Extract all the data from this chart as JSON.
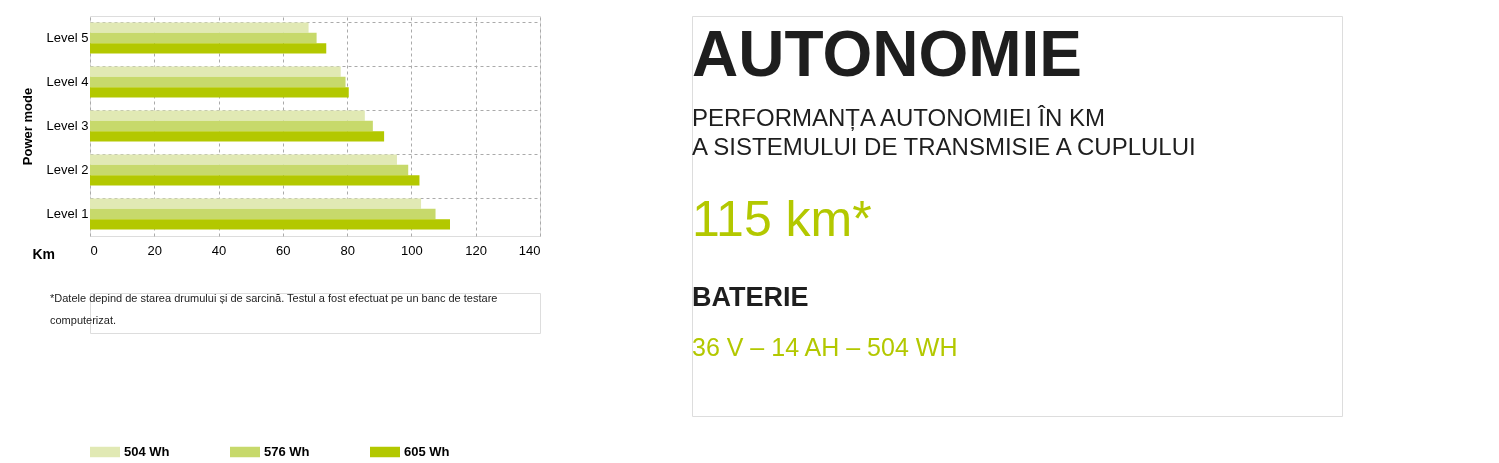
{
  "chart_data": {
    "type": "bar",
    "orientation": "horizontal",
    "title": "AUTONOMIE",
    "subtitle": "PERFORMANȚA AUTONOMIEI ÎN KM\nA SISTEMULUI DE TRANSMISIE A CUPLULUI",
    "xlabel": "Km",
    "ylabel": "Power mode",
    "categories": [
      "Level 5",
      "Level 4",
      "Level 3",
      "Level 2",
      "Level 1"
    ],
    "series": [
      {
        "name": "504 Wh",
        "color": "#e1e9b4",
        "values": [
          68,
          78,
          85.5,
          95.5,
          103
        ]
      },
      {
        "name": "576 Wh",
        "color": "#c7d96b",
        "values": [
          70.5,
          79.5,
          88,
          99,
          107.5
        ]
      },
      {
        "name": "605 Wh",
        "color": "#b3c800",
        "values": [
          73.5,
          80.5,
          91.5,
          102.5,
          112
        ]
      }
    ],
    "xlim": [
      0,
      140
    ],
    "xticks": [
      0,
      20,
      40,
      60,
      80,
      100,
      120,
      140
    ],
    "grid": true,
    "legend": "bottom",
    "annotations": [
      "115 km*",
      "BATERIE",
      "36 V – 14 AH – 504 WH",
      "*Datele depind de starea drumului și de sarcină. Testul a fost efectuat pe un banc de testare\ncomputerizat."
    ]
  }
}
